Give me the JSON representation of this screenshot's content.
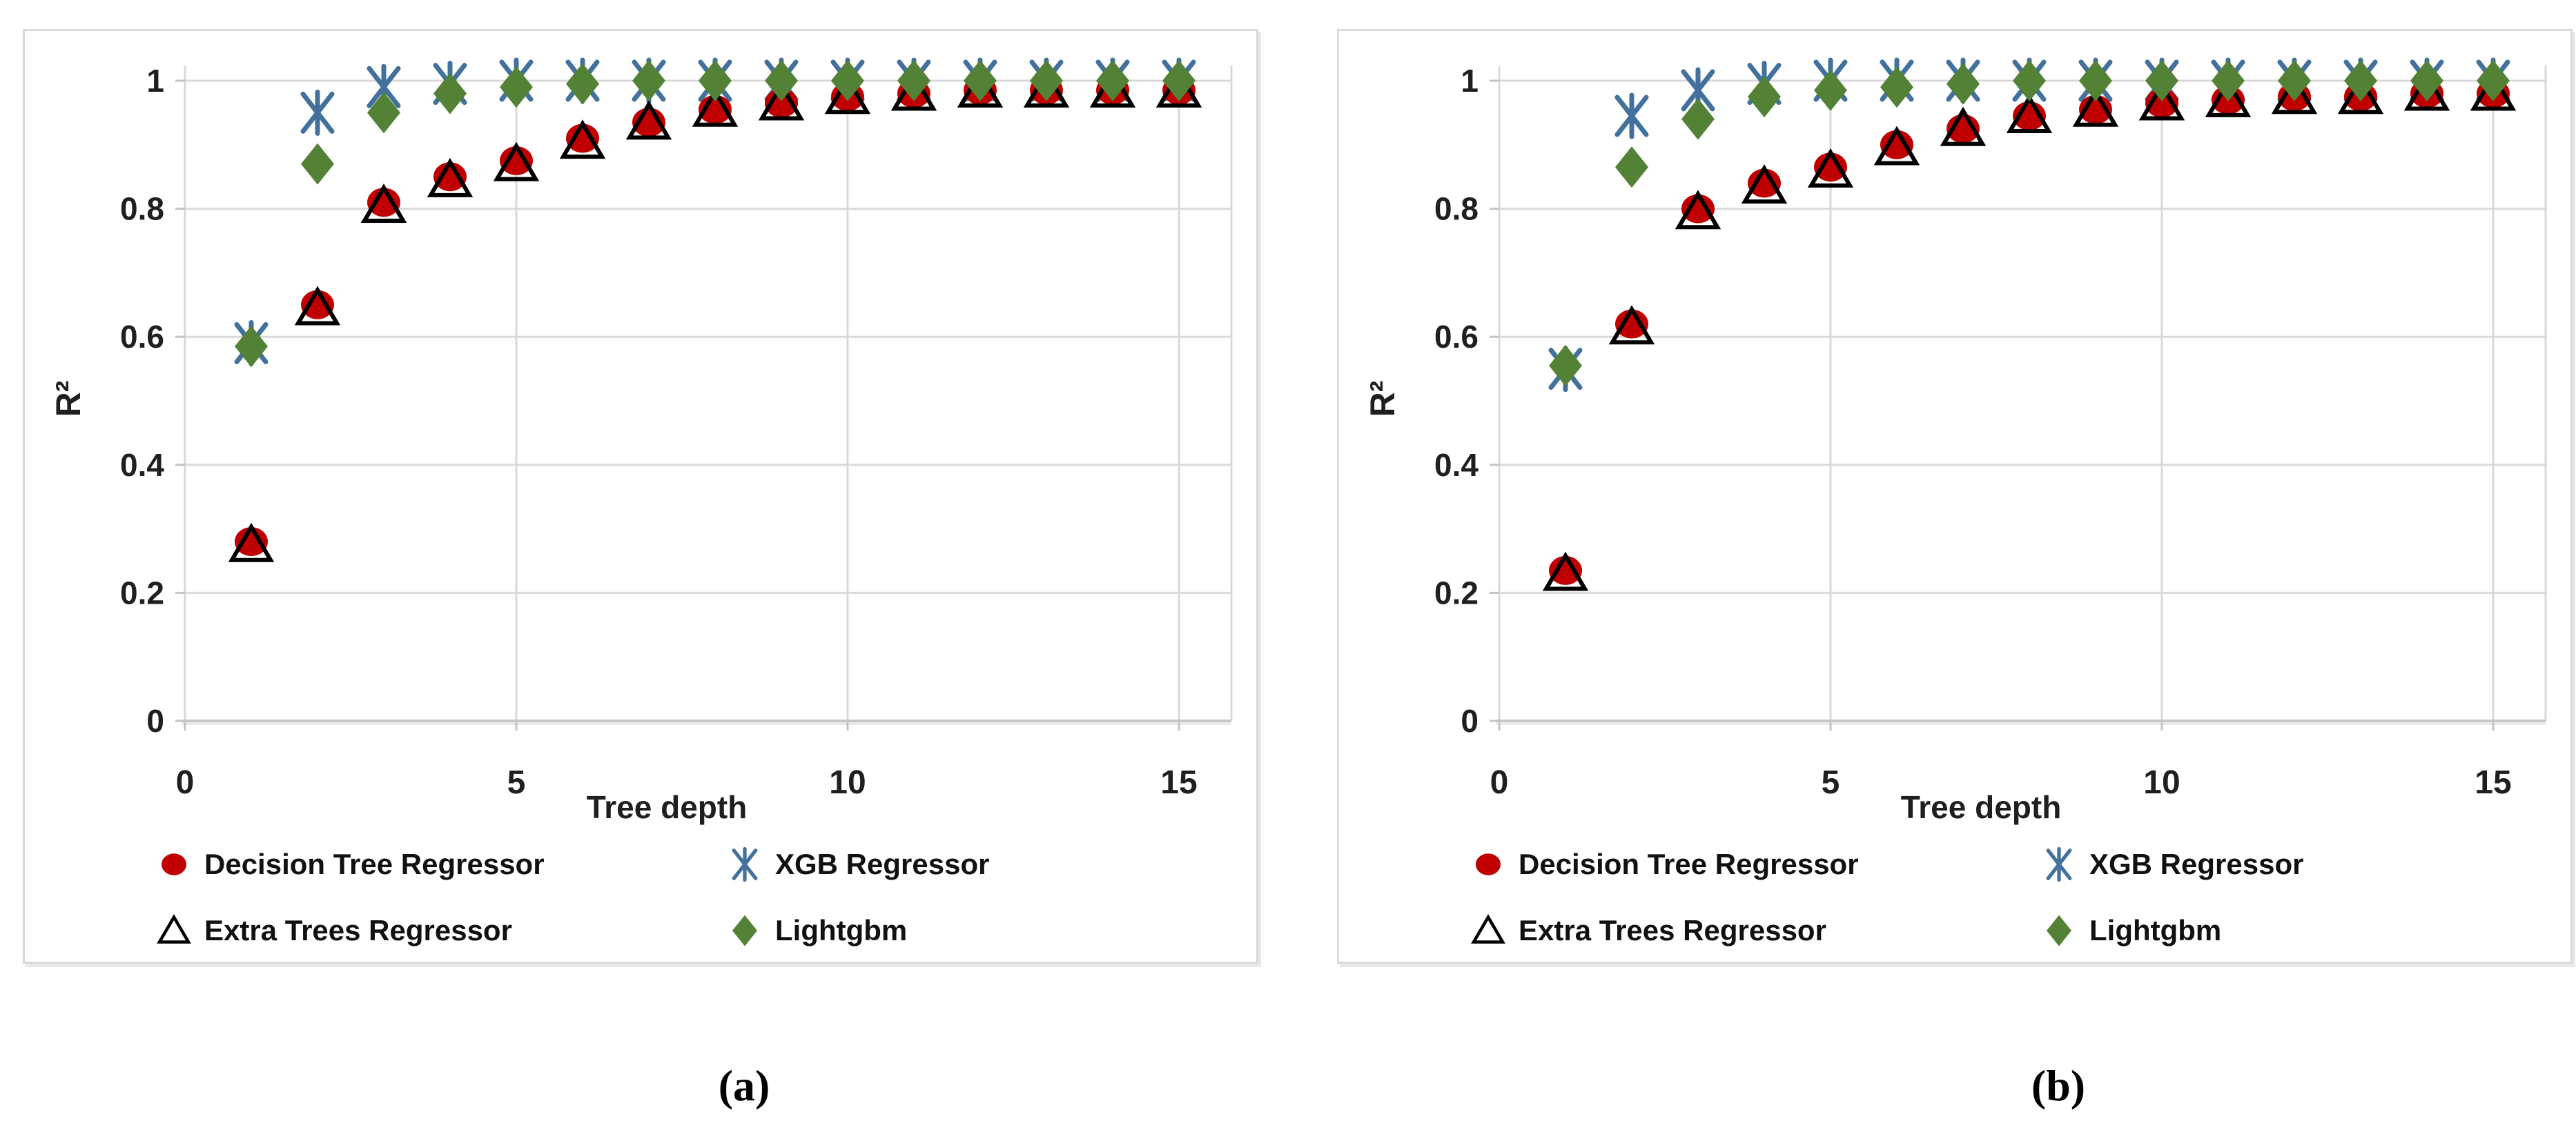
{
  "figure": {
    "background": "#ffffff",
    "description": "Two scatter panels of R-squared versus tree depth for four regressors"
  },
  "colors": {
    "grid": "#D9D9D9",
    "axis": "#C6C6C6",
    "axis_shadow": "#E6E6E6",
    "tick": "#C3C3C3",
    "text": "#1f1f1f",
    "chart_border": "#D9D9D9"
  },
  "chart_data": [
    {
      "id": "a",
      "type": "scatter",
      "caption": "(a)",
      "xlabel": "Tree depth",
      "ylabel": "R²",
      "xlim": [
        0,
        16.1
      ],
      "ylim": [
        0,
        1.08
      ],
      "grid": true,
      "legend_position": "bottom-left",
      "x_ticks": [
        0,
        5,
        10,
        15
      ],
      "x_tick_labels": [
        "0",
        "5",
        "10",
        "15"
      ],
      "y_ticks": [
        0,
        0.2,
        0.4,
        0.6,
        0.8,
        1
      ],
      "y_tick_labels": [
        "0",
        "0.2",
        "0.4",
        "0.6",
        "0.8",
        "1"
      ],
      "x": [
        1,
        2,
        3,
        4,
        5,
        6,
        7,
        8,
        9,
        10,
        11,
        12,
        13,
        14,
        15
      ],
      "series": [
        {
          "name": "Decision Tree Regressor",
          "marker": "circle",
          "color": "#C00000",
          "values": [
            0.28,
            0.65,
            0.81,
            0.85,
            0.875,
            0.91,
            0.935,
            0.955,
            0.965,
            0.975,
            0.98,
            0.985,
            0.985,
            0.985,
            0.985
          ]
        },
        {
          "name": "XGB Regressor",
          "marker": "asterisk",
          "color": "#41719C",
          "values": [
            0.59,
            0.95,
            0.99,
            0.995,
            1,
            1,
            1,
            1,
            1,
            1,
            1,
            1,
            1,
            1,
            1
          ]
        },
        {
          "name": "Extra Trees Regressor",
          "marker": "triangle",
          "color": "#000000",
          "values": [
            0.275,
            0.645,
            0.805,
            0.845,
            0.87,
            0.905,
            0.935,
            0.955,
            0.965,
            0.975,
            0.98,
            0.985,
            0.985,
            0.985,
            0.985
          ]
        },
        {
          "name": "Lightgbm",
          "marker": "diamond",
          "color": "#538135",
          "values": [
            0.585,
            0.87,
            0.95,
            0.98,
            0.99,
            0.995,
            1,
            1,
            1,
            1,
            1,
            1,
            1,
            1,
            1
          ]
        }
      ]
    },
    {
      "id": "b",
      "type": "scatter",
      "caption": "(b)",
      "xlabel": "Tree depth",
      "ylabel": "R²",
      "xlim": [
        0,
        16.1
      ],
      "ylim": [
        0,
        1.08
      ],
      "grid": true,
      "legend_position": "bottom-left",
      "x_ticks": [
        0,
        5,
        10,
        15
      ],
      "x_tick_labels": [
        "0",
        "5",
        "10",
        "15"
      ],
      "y_ticks": [
        0,
        0.2,
        0.4,
        0.6,
        0.8,
        1
      ],
      "y_tick_labels": [
        "0",
        "0.2",
        "0.4",
        "0.6",
        "0.8",
        "1"
      ],
      "x": [
        1,
        2,
        3,
        4,
        5,
        6,
        7,
        8,
        9,
        10,
        11,
        12,
        13,
        14,
        15
      ],
      "series": [
        {
          "name": "Decision Tree Regressor",
          "marker": "circle",
          "color": "#C00000",
          "values": [
            0.235,
            0.62,
            0.8,
            0.84,
            0.865,
            0.9,
            0.925,
            0.945,
            0.955,
            0.965,
            0.97,
            0.975,
            0.975,
            0.98,
            0.98
          ]
        },
        {
          "name": "XGB Regressor",
          "marker": "asterisk",
          "color": "#41719C",
          "values": [
            0.55,
            0.945,
            0.985,
            0.995,
            1,
            1,
            1,
            1,
            1,
            1,
            1,
            1,
            1,
            1,
            1
          ]
        },
        {
          "name": "Extra Trees Regressor",
          "marker": "triangle",
          "color": "#000000",
          "values": [
            0.23,
            0.615,
            0.795,
            0.835,
            0.86,
            0.895,
            0.925,
            0.945,
            0.955,
            0.965,
            0.97,
            0.975,
            0.975,
            0.98,
            0.98
          ]
        },
        {
          "name": "Lightgbm",
          "marker": "diamond",
          "color": "#538135",
          "values": [
            0.555,
            0.865,
            0.94,
            0.975,
            0.985,
            0.99,
            0.995,
            1,
            1,
            1,
            1,
            1,
            1,
            1,
            1
          ]
        }
      ]
    }
  ]
}
